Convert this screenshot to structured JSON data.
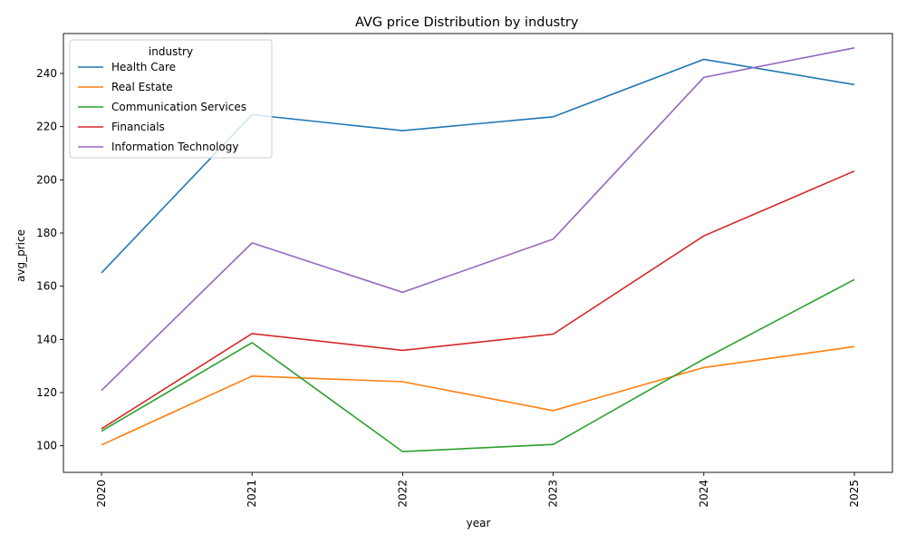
{
  "chart_data": {
    "type": "line",
    "title": "AVG price Distribution by industry",
    "xlabel": "year",
    "ylabel": "avg_price",
    "x": [
      "2020",
      "2021",
      "2022",
      "2023",
      "2024",
      "2025"
    ],
    "ylim": [
      90,
      255
    ],
    "yticks": [
      100,
      120,
      140,
      160,
      180,
      200,
      220,
      240
    ],
    "grid": false,
    "legend": {
      "title": "industry",
      "placement": "top-left"
    },
    "series": [
      {
        "name": "Health Care",
        "color": "#1f77b4",
        "values": [
          165.0,
          224.5,
          218.5,
          223.7,
          245.3,
          235.8
        ]
      },
      {
        "name": "Real Estate",
        "color": "#ff7f0e",
        "values": [
          100.3,
          126.2,
          124.1,
          113.2,
          129.4,
          137.3
        ]
      },
      {
        "name": "Communication Services",
        "color": "#2ca02c",
        "values": [
          105.5,
          138.8,
          97.8,
          100.5,
          132.6,
          162.5
        ]
      },
      {
        "name": "Financials",
        "color": "#d62728",
        "values": [
          106.4,
          142.2,
          135.9,
          142.0,
          178.9,
          203.3
        ]
      },
      {
        "name": "Information Technology",
        "color": "#9467bd",
        "values": [
          120.8,
          176.3,
          157.7,
          177.7,
          238.5,
          249.6
        ]
      }
    ]
  }
}
